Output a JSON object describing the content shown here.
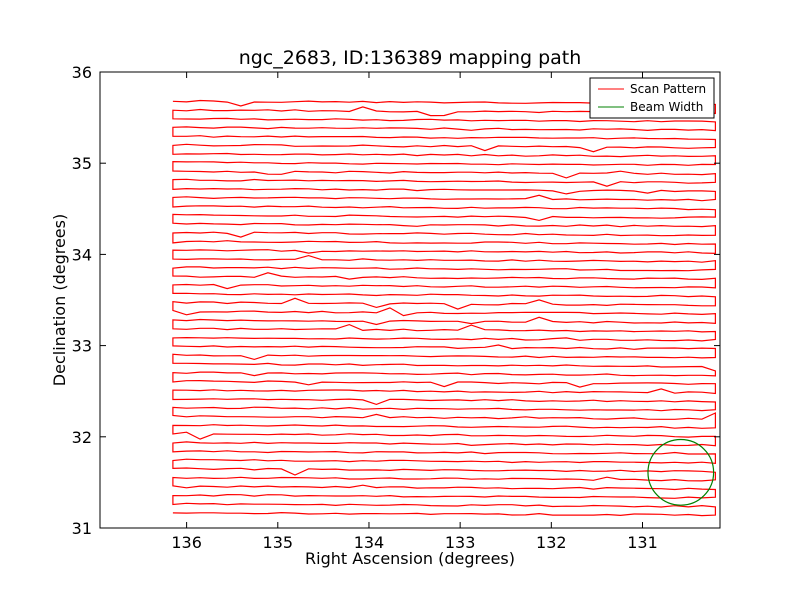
{
  "chart_data": {
    "type": "line",
    "title": "ngc_2683, ID:136389 mapping path",
    "xlabel": "Right Ascension (degrees)",
    "ylabel": "Declination (degrees)",
    "xlim": [
      136.95,
      130.15
    ],
    "ylim": [
      31,
      36
    ],
    "x_ticks": [
      136,
      135,
      134,
      133,
      132,
      131
    ],
    "y_ticks": [
      31,
      32,
      33,
      34,
      35,
      36
    ],
    "x_tick_labels": [
      "136",
      "135",
      "134",
      "133",
      "132",
      "131"
    ],
    "y_tick_labels": [
      "31",
      "32",
      "33",
      "34",
      "35",
      "36"
    ],
    "grid": false,
    "legend_position": "top-right",
    "series": [
      {
        "name": "Scan Pattern",
        "color": "#ff0000",
        "pattern": "raster",
        "ra_range": [
          136.15,
          130.2
        ],
        "dec_range": [
          31.17,
          35.68
        ],
        "rows": 48
      },
      {
        "name": "Beam Width",
        "color": "#008000",
        "shape": "circle",
        "center_ra": 130.58,
        "center_dec": 31.61,
        "radius_deg": 0.36
      }
    ]
  }
}
